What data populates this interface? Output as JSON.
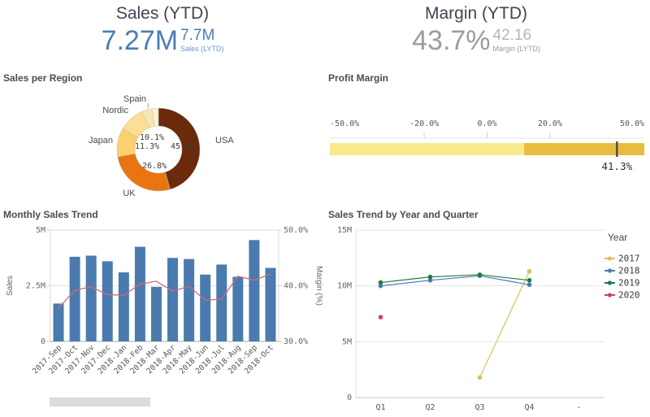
{
  "kpis": {
    "sales": {
      "title": "Sales (YTD)",
      "value": "7.27M",
      "secondary_value": "7.7M",
      "secondary_label": "Sales (LYTD)",
      "value_color": "#4a7eb5",
      "secondary_value_color": "#4a7eb5",
      "secondary_label_color": "#6f93c4"
    },
    "margin": {
      "title": "Margin (YTD)",
      "value": "43.7%",
      "secondary_value": "42.16",
      "secondary_label": "Margin (LYTD)",
      "value_color": "#9c9c9c",
      "secondary_value_color": "#b5b5b5",
      "secondary_label_color": "#9a9a9a"
    }
  },
  "chart_data": [
    {
      "id": "sales-per-region",
      "type": "pie",
      "donut": true,
      "title": "Sales per Region",
      "labels": [
        "USA",
        "UK",
        "Japan",
        "Nordic",
        "Spain",
        ""
      ],
      "values": [
        45.4,
        26.8,
        11.3,
        10.1,
        3.9,
        2.5
      ],
      "value_labels": [
        "45.4%",
        "26.8%",
        "11.3%",
        "10.1%",
        "",
        ""
      ],
      "colors": [
        "#6b2a0b",
        "#e87511",
        "#fbd06e",
        "#fbdf96",
        "#f7e7af",
        "#fcf3d3"
      ]
    },
    {
      "id": "profit-margin",
      "type": "bullet-gauge",
      "title": "Profit Margin",
      "min": -50,
      "max": 50,
      "axis_ticks": [
        {
          "value": -50,
          "label": "-50.0%"
        },
        {
          "value": -20,
          "label": "-20.0%"
        },
        {
          "value": 0,
          "label": "0.0%"
        },
        {
          "value": 20,
          "label": "20.0%"
        },
        {
          "value": 50,
          "label": "50.0%"
        }
      ],
      "segments": [
        {
          "from": -50,
          "to": 11.8,
          "color": "#f8e98b"
        },
        {
          "from": 11.8,
          "to": 50,
          "color": "#e9bc3d"
        }
      ],
      "marker": {
        "value": 41.3,
        "label": "41.3%",
        "color": "#4a4a4a"
      }
    },
    {
      "id": "monthly-sales-trend",
      "type": "bar",
      "title": "Monthly Sales Trend",
      "categories": [
        "2017-Sep",
        "2017-Oct",
        "2017-Nov",
        "2017-Dec",
        "2018-Jan",
        "2018-Feb",
        "2018-Mar",
        "2018-Apr",
        "2018-May",
        "2018-Jun",
        "2018-Jul",
        "2018-Aug",
        "2018-Sep",
        "2018-Oct"
      ],
      "series": [
        {
          "name": "Sales",
          "type": "bar",
          "axis": "left",
          "color": "#4b7bae",
          "values": [
            1.7,
            3.8,
            3.85,
            3.6,
            3.1,
            4.25,
            2.45,
            3.75,
            3.7,
            3.0,
            3.45,
            2.9,
            4.55,
            3.3
          ]
        },
        {
          "name": "Margin (%)",
          "type": "line",
          "axis": "right",
          "color": "#d06a76",
          "values": [
            36.0,
            39.2,
            39.8,
            38.4,
            38.3,
            40.3,
            40.8,
            39.0,
            39.9,
            37.4,
            37.6,
            41.7,
            41.0,
            42.1
          ]
        }
      ],
      "left_axis": {
        "label": "Sales",
        "min": 0,
        "max": 5,
        "ticks": [
          {
            "value": 0,
            "label": "0"
          },
          {
            "value": 2.5,
            "label": "2.5M"
          },
          {
            "value": 5,
            "label": "5M"
          }
        ]
      },
      "right_axis": {
        "label": "Margin (%)",
        "min": 30,
        "max": 50,
        "ticks": [
          {
            "value": 30,
            "label": "30.0%"
          },
          {
            "value": 40,
            "label": "40.0%"
          },
          {
            "value": 50,
            "label": "50.0%"
          }
        ]
      }
    },
    {
      "id": "sales-trend-by-year-and-quarter",
      "type": "line",
      "title": "Sales Trend by Year and Quarter",
      "categories": [
        "Q1",
        "Q2",
        "Q3",
        "Q4",
        "-"
      ],
      "y_axis": {
        "min": 0,
        "max": 15,
        "ticks": [
          {
            "value": 0,
            "label": "0"
          },
          {
            "value": 5,
            "label": "5M"
          },
          {
            "value": 10,
            "label": "10M"
          },
          {
            "value": 15,
            "label": "15M"
          }
        ]
      },
      "legend_title": "Year",
      "series": [
        {
          "name": "2017",
          "color": "#ddbe62",
          "values": [
            null,
            null,
            1.8,
            11.3,
            null
          ]
        },
        {
          "name": "2018",
          "color": "#4a7bb5",
          "values": [
            10.0,
            10.5,
            10.9,
            10.1,
            null
          ]
        },
        {
          "name": "2019",
          "color": "#1e7c3d",
          "values": [
            10.3,
            10.8,
            11.0,
            10.5,
            null
          ]
        },
        {
          "name": "2020",
          "color": "#c4495c",
          "values": [
            7.2,
            null,
            null,
            null,
            null
          ]
        }
      ]
    }
  ]
}
